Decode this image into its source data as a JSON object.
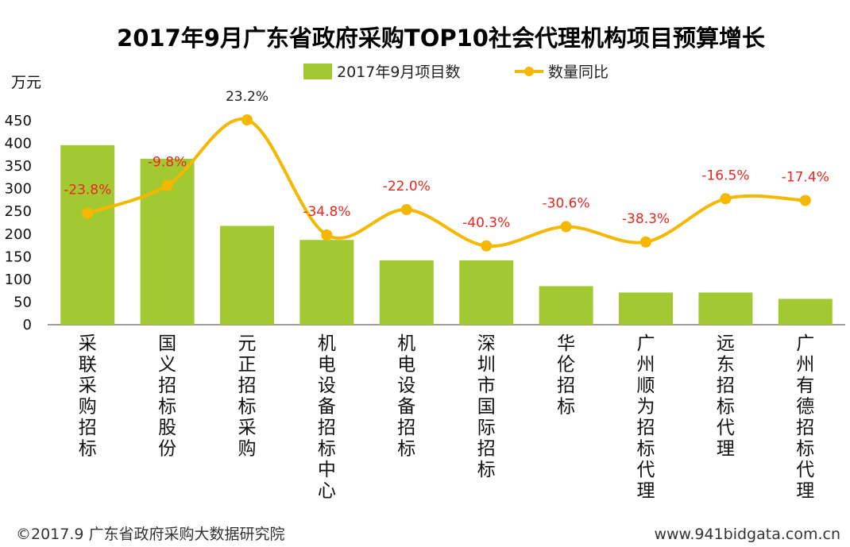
{
  "chart_data": {
    "type": "bar",
    "title": "2017年9月广东省政府采购TOP10社会代理机构项目预算增长",
    "ylabel": "万元",
    "ylim": [
      0,
      450
    ],
    "yticks": [
      0,
      50,
      100,
      150,
      200,
      250,
      300,
      350,
      400,
      450
    ],
    "categories": [
      "采联采购招标",
      "国义招标股份",
      "元正招标采购",
      "机电设备招标中心",
      "机电设备招标",
      "深圳市国际招标",
      "华伦招标",
      "广州顺为招标代理",
      "远东招标代理",
      "广州有德招标代理"
    ],
    "series": [
      {
        "name": "2017年9月项目数",
        "kind": "bar",
        "color": "#a3c932",
        "values": [
          396,
          366,
          218,
          187,
          142,
          142,
          85,
          71,
          71,
          57
        ]
      },
      {
        "name": "数量同比",
        "kind": "line",
        "color": "#f5b800",
        "secondary_axis": true,
        "values": [
          -23.8,
          -9.8,
          23.2,
          -34.8,
          -22.0,
          -40.3,
          -30.6,
          -38.3,
          -16.5,
          -17.4
        ],
        "labels": [
          "-23.8%",
          "-9.8%",
          "23.2%",
          "-34.8%",
          "-22.0%",
          "-40.3%",
          "-30.6%",
          "-38.3%",
          "-16.5%",
          "-17.4%"
        ],
        "negative_label_color": "#e8271e",
        "positive_label_color": "#222222"
      }
    ]
  },
  "footer": {
    "left": "©2017.9 广东省政府采购大数据研究院",
    "right": "www.941bidgata.com.cn"
  }
}
